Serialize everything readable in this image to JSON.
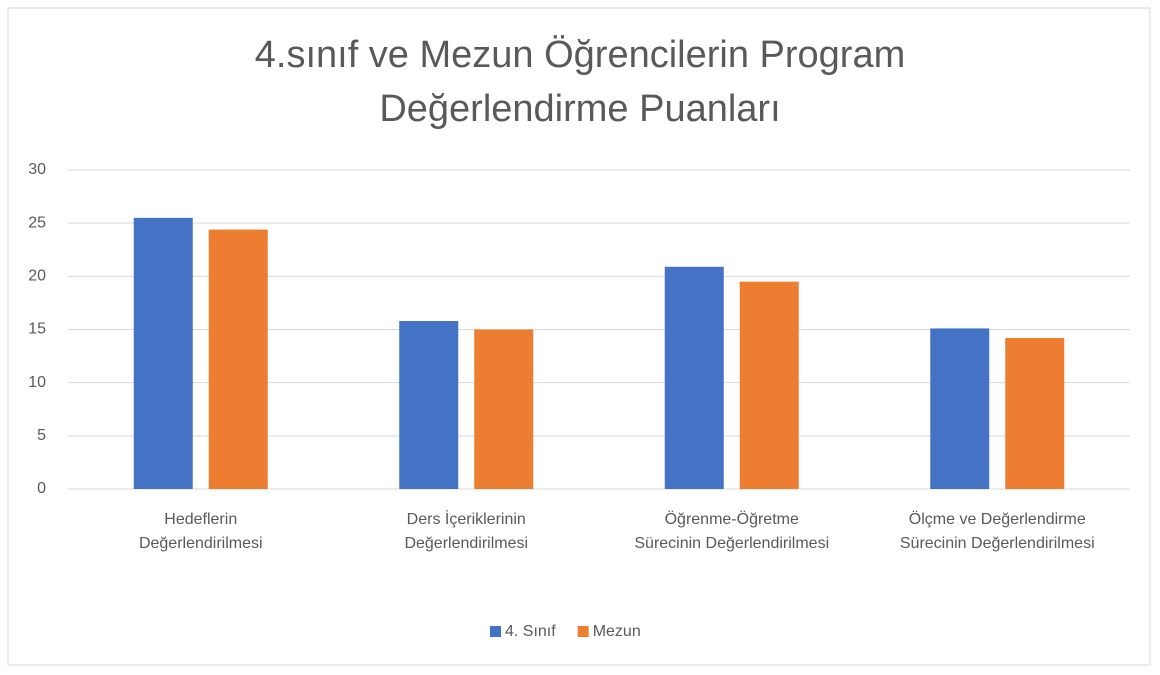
{
  "chart_data": {
    "type": "bar",
    "title": "4.sınıf ve Mezun Öğrencilerin Program Değerlendirme Puanları",
    "categories": [
      "Hedeflerin Değerlendirilmesi",
      "Ders İçeriklerinin Değerlendirilmesi",
      "Öğrenme-Öğretme Sürecinin Değerlendirilmesi",
      "Ölçme ve Değerlendirme Sürecinin Değerlendirilmesi"
    ],
    "series": [
      {
        "name": "4. Sınıf",
        "color": "#4472c4",
        "values": [
          25.5,
          15.8,
          20.9,
          15.1
        ]
      },
      {
        "name": "Mezun",
        "color": "#ed7d31",
        "values": [
          24.4,
          15.0,
          19.5,
          14.2
        ]
      }
    ],
    "ylim": [
      0,
      30
    ],
    "yticks": [
      0,
      5,
      10,
      15,
      20,
      25,
      30
    ],
    "grid": true,
    "legend": "bottom"
  }
}
